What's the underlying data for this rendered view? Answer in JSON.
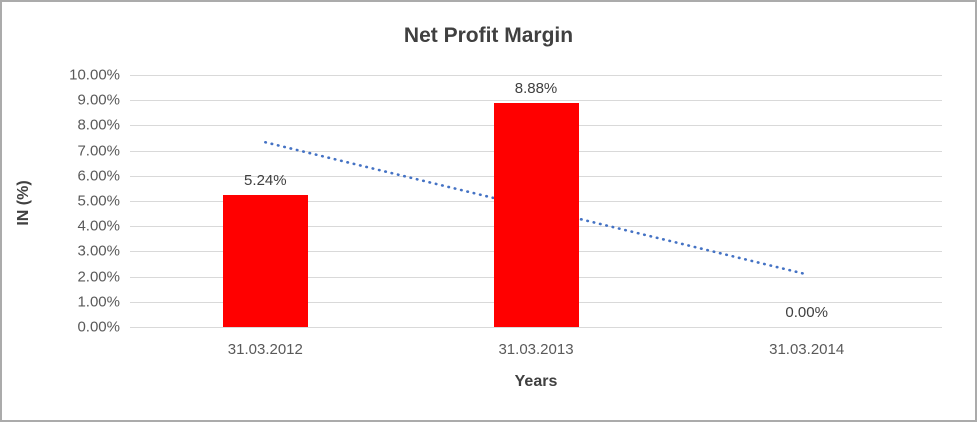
{
  "chart_data": {
    "type": "bar",
    "title": "Net Profit Margin",
    "xlabel": "Years",
    "ylabel": "IN (%)",
    "categories": [
      "31.03.2012",
      "31.03.2013",
      "31.03.2014"
    ],
    "values": [
      5.24,
      8.88,
      0.0
    ],
    "data_labels": [
      "5.24%",
      "8.88%",
      "0.00%"
    ],
    "ylim": [
      0,
      10
    ],
    "ytick_step": 1,
    "ytick_labels": [
      "0.00%",
      "1.00%",
      "2.00%",
      "3.00%",
      "4.00%",
      "5.00%",
      "6.00%",
      "7.00%",
      "8.00%",
      "9.00%",
      "10.00%"
    ],
    "grid": true,
    "legend": false,
    "bar_color": "#ff0000",
    "trendline": {
      "style": "dotted",
      "color": "#4472c4",
      "start_value": 7.33,
      "end_value": 2.09
    }
  }
}
